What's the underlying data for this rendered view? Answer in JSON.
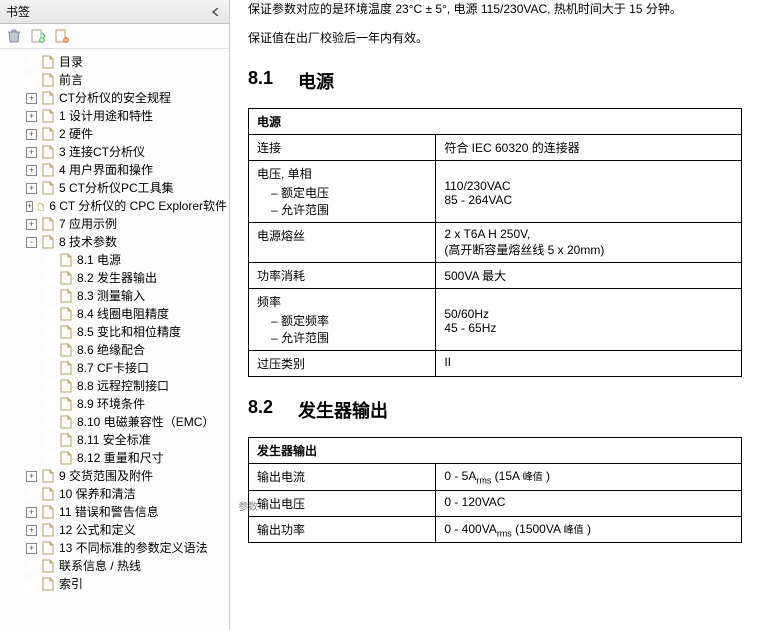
{
  "sidebar": {
    "title": "书签",
    "toolbar": {
      "trash": "trash",
      "new": "new-bookmark",
      "tag": "tag-bookmark"
    },
    "items": [
      {
        "label": "目录",
        "level": 1,
        "exp": ""
      },
      {
        "label": "前言",
        "level": 1,
        "exp": ""
      },
      {
        "label": "CT分析仪的安全规程",
        "level": 1,
        "exp": "+"
      },
      {
        "label": "1 设计用途和特性",
        "level": 1,
        "exp": "+"
      },
      {
        "label": "2 硬件",
        "level": 1,
        "exp": "+"
      },
      {
        "label": "3 连接CT分析仪",
        "level": 1,
        "exp": "+"
      },
      {
        "label": "4 用户界面和操作",
        "level": 1,
        "exp": "+"
      },
      {
        "label": "5 CT分析仪PC工具集",
        "level": 1,
        "exp": "+"
      },
      {
        "label": "6 CT 分析仪的 CPC Explorer软件",
        "level": 1,
        "exp": "+"
      },
      {
        "label": "7 应用示例",
        "level": 1,
        "exp": "+"
      },
      {
        "label": "8 技术参数",
        "level": 1,
        "exp": "-"
      },
      {
        "label": "8.1 电源",
        "level": 2,
        "exp": ""
      },
      {
        "label": "8.2 发生器输出",
        "level": 2,
        "exp": ""
      },
      {
        "label": "8.3 测量输入",
        "level": 2,
        "exp": ""
      },
      {
        "label": "8.4 线圈电阻精度",
        "level": 2,
        "exp": ""
      },
      {
        "label": "8.5 变比和相位精度",
        "level": 2,
        "exp": ""
      },
      {
        "label": "8.6 绝缘配合",
        "level": 2,
        "exp": ""
      },
      {
        "label": "8.7 CF卡接口",
        "level": 2,
        "exp": ""
      },
      {
        "label": "8.8 远程控制接口",
        "level": 2,
        "exp": ""
      },
      {
        "label": "8.9 环境条件",
        "level": 2,
        "exp": ""
      },
      {
        "label": "8.10 电磁兼容性（EMC）",
        "level": 2,
        "exp": ""
      },
      {
        "label": "8.11 安全标准",
        "level": 2,
        "exp": ""
      },
      {
        "label": "8.12 重量和尺寸",
        "level": 2,
        "exp": ""
      },
      {
        "label": "9 交货范围及附件",
        "level": 1,
        "exp": "+"
      },
      {
        "label": "10 保养和清洁",
        "level": 1,
        "exp": ""
      },
      {
        "label": "11 错误和警告信息",
        "level": 1,
        "exp": "+"
      },
      {
        "label": "12 公式和定义",
        "level": 1,
        "exp": "+"
      },
      {
        "label": "13 不同标准的参数定义语法",
        "level": 1,
        "exp": "+"
      },
      {
        "label": "联系信息 / 热线",
        "level": 1,
        "exp": ""
      },
      {
        "label": "索引",
        "level": 1,
        "exp": ""
      }
    ]
  },
  "content": {
    "intro1": "保证参数对应的是环境温度 23°C ± 5°, 电源 115/230VAC, 热机时间大于 15 分钟。",
    "intro2": "保证值在出厂校验后一年内有效。",
    "side_note": "参数",
    "section81": {
      "num": "8.1",
      "title": "电源"
    },
    "table81": {
      "header": "电源",
      "rows": [
        {
          "k": "连接",
          "v": "符合 IEC 60320 的连接器"
        },
        {
          "k": "电压, 单相",
          "sub": [
            "额定电压",
            "允许范围"
          ],
          "sv": [
            "110/230VAC",
            "85 - 264VAC"
          ]
        },
        {
          "k": "电源熔丝",
          "v": "2 x T6A H 250V,\n(高开断容量熔丝线 5 x 20mm)"
        },
        {
          "k": "功率消耗",
          "v": "500VA 最大"
        },
        {
          "k": "频率",
          "sub": [
            "额定频率",
            "允许范围"
          ],
          "sv": [
            "50/60Hz",
            "45 - 65Hz"
          ]
        },
        {
          "k": "过压类别",
          "v": "II"
        }
      ]
    },
    "section82": {
      "num": "8.2",
      "title": "发生器输出"
    },
    "table82": {
      "header": "发生器输出",
      "rows": [
        {
          "k": "输出电流",
          "v_html": "0 - 5A<span class='sub'>rms</span> (15A <span style='font-size:10px'>峰值</span> )"
        },
        {
          "k": "输出电压",
          "v_html": "0 - 120VAC"
        },
        {
          "k": "输出功率",
          "v_html": "0 - 400VA<span class='sub'>rms</span> (1500VA <span style='font-size:10px'>峰值</span> )"
        }
      ]
    }
  }
}
